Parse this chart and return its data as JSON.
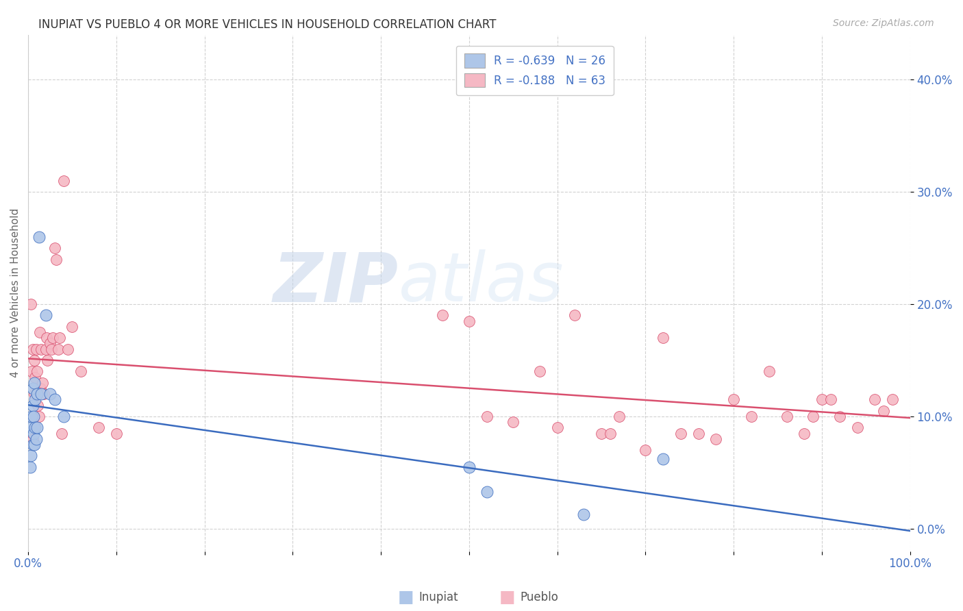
{
  "title": "INUPIAT VS PUEBLO 4 OR MORE VEHICLES IN HOUSEHOLD CORRELATION CHART",
  "source": "Source: ZipAtlas.com",
  "ylabel": "4 or more Vehicles in Household",
  "xlim": [
    0,
    1.0
  ],
  "ylim": [
    -0.02,
    0.44
  ],
  "xticks": [
    0.0,
    0.1,
    0.2,
    0.3,
    0.4,
    0.5,
    0.6,
    0.7,
    0.8,
    0.9,
    1.0
  ],
  "xticklabels": [
    "0.0%",
    "",
    "",
    "",
    "",
    "",
    "",
    "",
    "",
    "",
    "100.0%"
  ],
  "yticks": [
    0.0,
    0.1,
    0.2,
    0.3,
    0.4
  ],
  "yticklabels": [
    "0.0%",
    "10.0%",
    "20.0%",
    "30.0%",
    "40.0%"
  ],
  "inupiat_color": "#aec6e8",
  "pueblo_color": "#f5b8c4",
  "inupiat_line_color": "#3a6bbf",
  "pueblo_line_color": "#d94f6e",
  "legend_inupiat": "R = -0.639   N = 26",
  "legend_pueblo": "R = -0.188   N = 63",
  "watermark_zip": "ZIP",
  "watermark_atlas": "atlas",
  "inupiat_x": [
    0.002,
    0.003,
    0.003,
    0.004,
    0.005,
    0.005,
    0.005,
    0.006,
    0.006,
    0.007,
    0.007,
    0.008,
    0.008,
    0.009,
    0.01,
    0.01,
    0.012,
    0.015,
    0.02,
    0.025,
    0.03,
    0.04,
    0.5,
    0.52,
    0.63,
    0.72
  ],
  "inupiat_y": [
    0.055,
    0.09,
    0.065,
    0.1,
    0.125,
    0.075,
    0.11,
    0.085,
    0.1,
    0.13,
    0.075,
    0.115,
    0.09,
    0.08,
    0.12,
    0.09,
    0.26,
    0.12,
    0.19,
    0.12,
    0.115,
    0.1,
    0.055,
    0.033,
    0.013,
    0.062
  ],
  "pueblo_x": [
    0.003,
    0.004,
    0.005,
    0.005,
    0.006,
    0.007,
    0.007,
    0.008,
    0.008,
    0.009,
    0.01,
    0.011,
    0.012,
    0.013,
    0.014,
    0.015,
    0.016,
    0.018,
    0.02,
    0.021,
    0.022,
    0.025,
    0.026,
    0.028,
    0.03,
    0.032,
    0.034,
    0.036,
    0.038,
    0.04,
    0.045,
    0.05,
    0.06,
    0.08,
    0.1,
    0.47,
    0.5,
    0.52,
    0.55,
    0.58,
    0.6,
    0.62,
    0.65,
    0.66,
    0.67,
    0.7,
    0.72,
    0.74,
    0.76,
    0.78,
    0.8,
    0.82,
    0.84,
    0.86,
    0.88,
    0.89,
    0.9,
    0.91,
    0.92,
    0.94,
    0.96,
    0.97,
    0.98
  ],
  "pueblo_y": [
    0.2,
    0.14,
    0.08,
    0.16,
    0.1,
    0.12,
    0.15,
    0.135,
    0.09,
    0.16,
    0.14,
    0.11,
    0.1,
    0.175,
    0.125,
    0.16,
    0.13,
    0.12,
    0.16,
    0.17,
    0.15,
    0.165,
    0.16,
    0.17,
    0.25,
    0.24,
    0.16,
    0.17,
    0.085,
    0.31,
    0.16,
    0.18,
    0.14,
    0.09,
    0.085,
    0.19,
    0.185,
    0.1,
    0.095,
    0.14,
    0.09,
    0.19,
    0.085,
    0.085,
    0.1,
    0.07,
    0.17,
    0.085,
    0.085,
    0.08,
    0.115,
    0.1,
    0.14,
    0.1,
    0.085,
    0.1,
    0.115,
    0.115,
    0.1,
    0.09,
    0.115,
    0.105,
    0.115
  ]
}
